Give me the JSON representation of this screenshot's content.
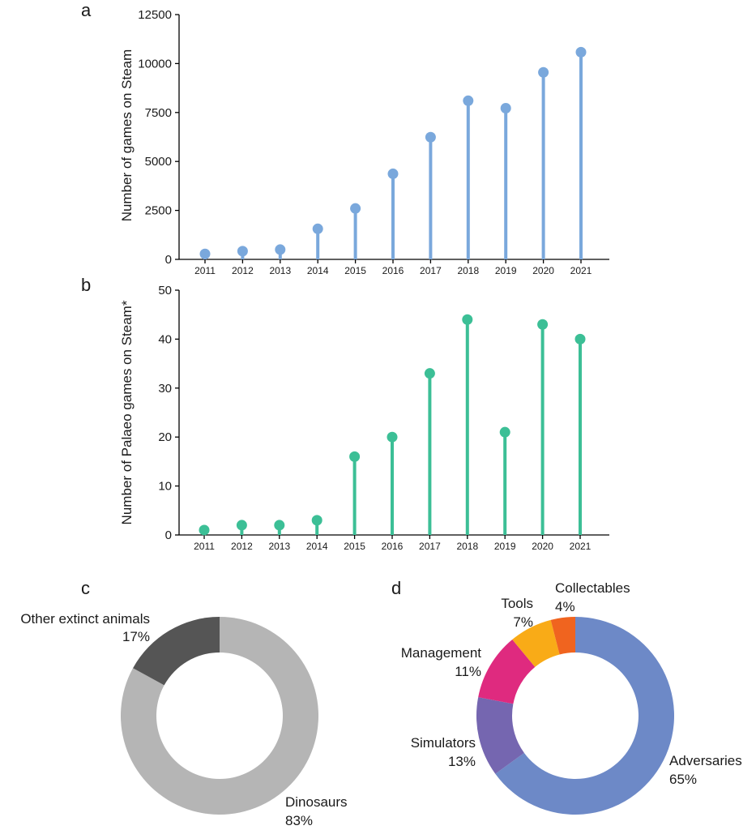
{
  "chart_data": [
    {
      "panel": "a",
      "type": "lollipop",
      "xlabel": "",
      "ylabel": "Number of games on Steam",
      "categories": [
        "2011",
        "2012",
        "2013",
        "2014",
        "2015",
        "2016",
        "2017",
        "2018",
        "2019",
        "2020",
        "2021"
      ],
      "values": [
        280,
        420,
        500,
        1560,
        2600,
        4370,
        6240,
        8100,
        7720,
        9550,
        10580
      ],
      "ylim": [
        0,
        12500
      ],
      "yticks": [
        "0",
        "2500",
        "5000",
        "7500",
        "10000",
        "12500"
      ],
      "color": "#7aa8dc"
    },
    {
      "panel": "b",
      "type": "lollipop",
      "xlabel": "",
      "ylabel": "Number of Palaeo games on Steam*",
      "categories": [
        "2011",
        "2012",
        "2013",
        "2014",
        "2015",
        "2016",
        "2017",
        "2018",
        "2019",
        "2020",
        "2021"
      ],
      "values": [
        1,
        2,
        2,
        3,
        16,
        20,
        33,
        44,
        21,
        43,
        40
      ],
      "ylim": [
        0,
        50
      ],
      "yticks": [
        "0",
        "10",
        "20",
        "30",
        "40",
        "50"
      ],
      "color": "#3cbf96"
    },
    {
      "panel": "c",
      "type": "pie",
      "donut": true,
      "slices": [
        {
          "label": "Dinosaurs",
          "pct_label": "83%",
          "value": 83,
          "color": "#b5b5b5"
        },
        {
          "label": "Other extinct animals",
          "pct_label": "17%",
          "value": 17,
          "color": "#555555"
        }
      ]
    },
    {
      "panel": "d",
      "type": "pie",
      "donut": true,
      "slices": [
        {
          "label": "Adversaries",
          "pct_label": "65%",
          "value": 65,
          "color": "#6d89c7"
        },
        {
          "label": "Simulators",
          "pct_label": "13%",
          "value": 13,
          "color": "#7566b0"
        },
        {
          "label": "Management",
          "pct_label": "11%",
          "value": 11,
          "color": "#df2a7f"
        },
        {
          "label": "Tools",
          "pct_label": "7%",
          "value": 7,
          "color": "#f9ab17"
        },
        {
          "label": "Collectables",
          "pct_label": "4%",
          "value": 4,
          "color": "#f0641f"
        }
      ]
    }
  ]
}
